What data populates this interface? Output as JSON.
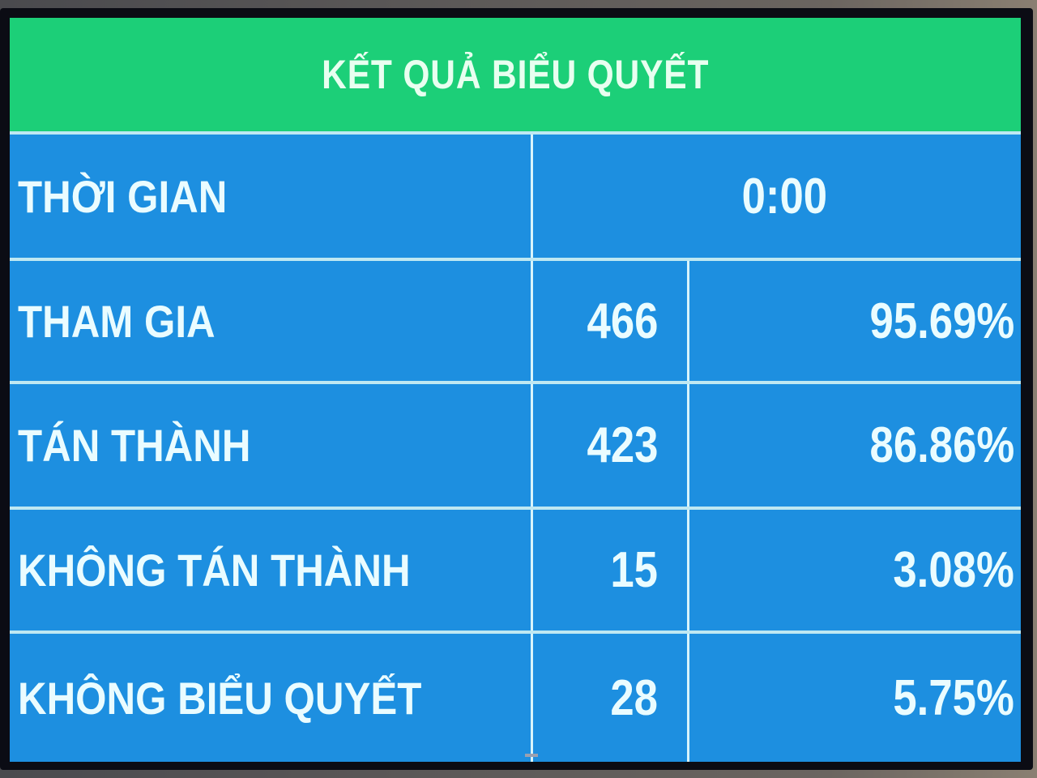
{
  "title": "KẾT QUẢ BIỂU QUYẾT",
  "time": {
    "label": "THỜI GIAN",
    "value": "0:00"
  },
  "rows": [
    {
      "label": "THAM GIA",
      "count": "466",
      "percent": "95.69%"
    },
    {
      "label": "TÁN THÀNH",
      "count": "423",
      "percent": "86.86%"
    },
    {
      "label": "KHÔNG TÁN THÀNH",
      "count": "15",
      "percent": "3.08%"
    },
    {
      "label": "KHÔNG BIỂU QUYẾT",
      "count": "28",
      "percent": "5.75%"
    }
  ],
  "colors": {
    "header": "#1ccf78",
    "body": "#1d8fe0",
    "text": "#eafcff"
  }
}
